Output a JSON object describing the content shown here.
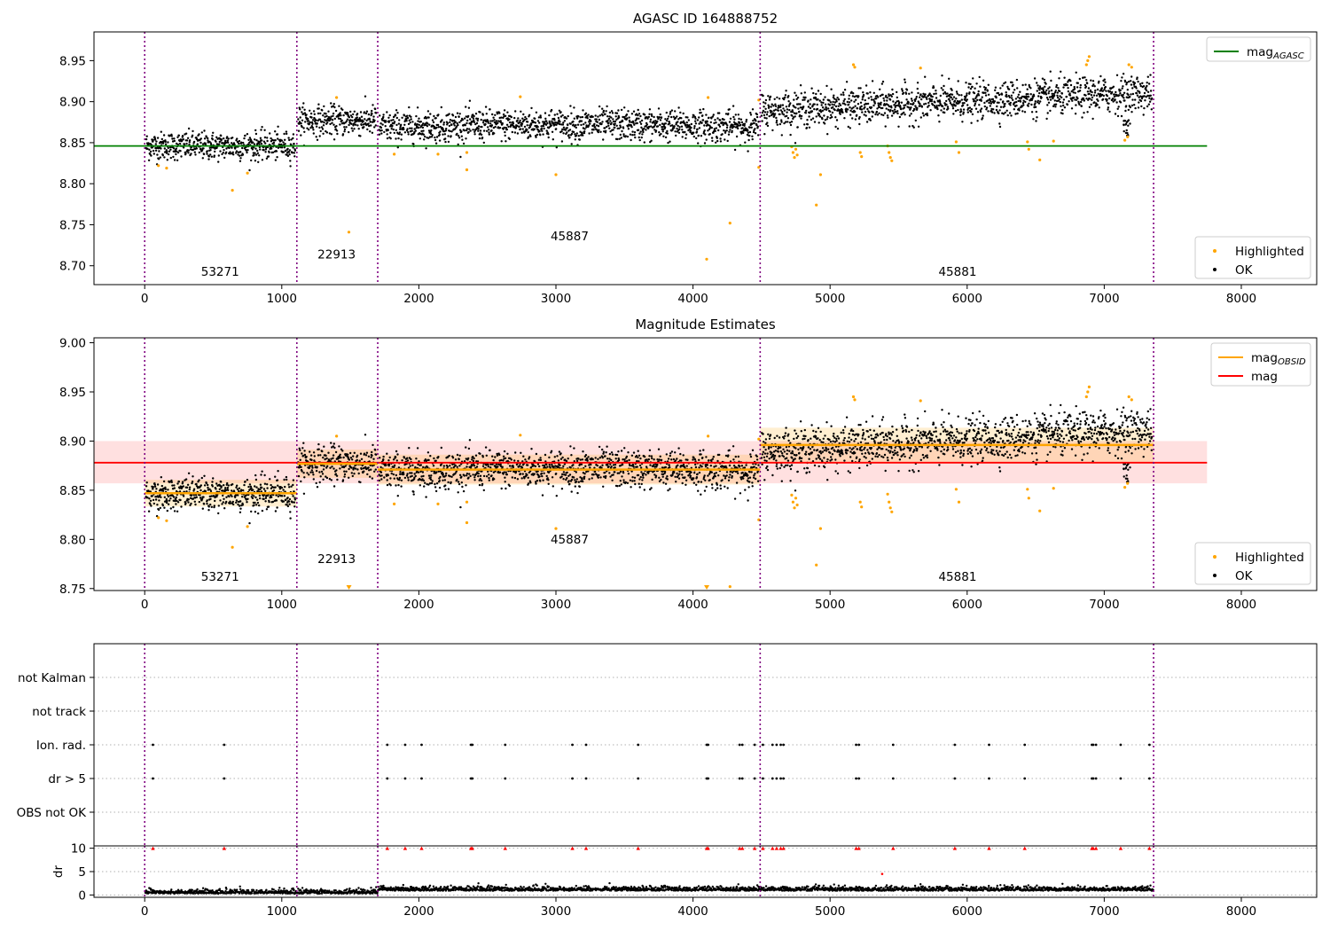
{
  "chart_data": [
    {
      "type": "scatter",
      "title": "AGASC ID 164888752",
      "xlim": [
        -370,
        8550
      ],
      "ylim": [
        8.677,
        8.985
      ],
      "x_ticks": [
        0,
        1000,
        2000,
        3000,
        4000,
        5000,
        6000,
        7000,
        8000
      ],
      "y_ticks": [
        8.7,
        8.75,
        8.8,
        8.85,
        8.9,
        8.95
      ],
      "y_tick_labels": [
        "8.70",
        "8.75",
        "8.80",
        "8.85",
        "8.90",
        "8.95"
      ],
      "obsid_boundaries": [
        0,
        1110,
        1700,
        4490,
        7360
      ],
      "obsid_labels": [
        {
          "text": "53271",
          "x": 550,
          "y": 8.688
        },
        {
          "text": "22913",
          "x": 1400,
          "y": 8.709
        },
        {
          "text": "45887",
          "x": 3100,
          "y": 8.731
        },
        {
          "text": "45881",
          "x": 5930,
          "y": 8.688
        }
      ],
      "mag_agasc": 8.846,
      "mag_agasc_extent": [
        -370,
        7750
      ],
      "legend_top": {
        "position": "upper-right",
        "entries": [
          {
            "label": "mag",
            "sub": "AGASC",
            "color": "#008000"
          }
        ]
      },
      "legend_bottom": {
        "position": "lower-right",
        "entries": [
          {
            "label": "Highlighted",
            "color": "#ffa500"
          },
          {
            "label": "OK",
            "color": "#000000"
          }
        ]
      },
      "segments": [
        {
          "x0": 0,
          "x1": 1110,
          "mean": 8.846,
          "sd": 0.0085
        },
        {
          "x0": 1110,
          "x1": 1700,
          "mean": 8.877,
          "sd": 0.009
        },
        {
          "x0": 1700,
          "x1": 4490,
          "mean": 8.869,
          "sd": 0.0095
        },
        {
          "x0": 4490,
          "x1": 7360,
          "mean": 8.897,
          "sd": 0.011
        }
      ],
      "highlighted_points": [
        [
          100,
          8.822
        ],
        [
          160,
          8.819
        ],
        [
          640,
          8.792
        ],
        [
          750,
          8.813
        ],
        [
          1400,
          8.905
        ],
        [
          1490,
          8.741
        ],
        [
          1820,
          8.836
        ],
        [
          2140,
          8.836
        ],
        [
          2350,
          8.817
        ],
        [
          2350,
          8.838
        ],
        [
          2740,
          8.906
        ],
        [
          3000,
          8.811
        ],
        [
          4100,
          8.708
        ],
        [
          4110,
          8.905
        ],
        [
          4270,
          8.752
        ],
        [
          4480,
          8.82
        ],
        [
          4480,
          8.902
        ],
        [
          4720,
          8.845
        ],
        [
          4730,
          8.838
        ],
        [
          4740,
          8.832
        ],
        [
          4750,
          8.842
        ],
        [
          4760,
          8.835
        ],
        [
          4900,
          8.774
        ],
        [
          4930,
          8.811
        ],
        [
          5170,
          8.945
        ],
        [
          5180,
          8.942
        ],
        [
          5220,
          8.838
        ],
        [
          5230,
          8.833
        ],
        [
          5420,
          8.846
        ],
        [
          5430,
          8.838
        ],
        [
          5440,
          8.832
        ],
        [
          5450,
          8.828
        ],
        [
          5660,
          8.941
        ],
        [
          5920,
          8.851
        ],
        [
          5940,
          8.838
        ],
        [
          6440,
          8.851
        ],
        [
          6450,
          8.842
        ],
        [
          6530,
          8.829
        ],
        [
          6630,
          8.852
        ],
        [
          6870,
          8.945
        ],
        [
          6880,
          8.95
        ],
        [
          6890,
          8.955
        ],
        [
          7150,
          8.853
        ],
        [
          7170,
          8.857
        ],
        [
          7180,
          8.945
        ],
        [
          7200,
          8.942
        ]
      ]
    },
    {
      "type": "scatter",
      "title": "Magnitude Estimates",
      "xlim": [
        -370,
        8550
      ],
      "ylim": [
        8.748,
        9.005
      ],
      "x_ticks": [
        0,
        1000,
        2000,
        3000,
        4000,
        5000,
        6000,
        7000,
        8000
      ],
      "y_ticks": [
        8.75,
        8.8,
        8.85,
        8.9,
        8.95,
        9.0
      ],
      "y_tick_labels": [
        "8.75",
        "8.80",
        "8.85",
        "8.90",
        "8.95",
        "9.00"
      ],
      "obsid_boundaries": [
        0,
        1110,
        1700,
        4490,
        7360
      ],
      "obsid_labels": [
        {
          "text": "53271",
          "x": 550,
          "y": 8.758
        },
        {
          "text": "22913",
          "x": 1400,
          "y": 8.776
        },
        {
          "text": "45887",
          "x": 3100,
          "y": 8.796
        },
        {
          "text": "45881",
          "x": 5930,
          "y": 8.758
        }
      ],
      "mag": 8.878,
      "mag_band": [
        8.857,
        8.9
      ],
      "mag_extent": [
        -370,
        7750
      ],
      "mag_obsid": [
        {
          "x0": 0,
          "x1": 1110,
          "value": 8.847
        },
        {
          "x0": 1110,
          "x1": 1700,
          "value": 8.877
        },
        {
          "x0": 1700,
          "x1": 4490,
          "value": 8.871
        },
        {
          "x0": 4490,
          "x1": 7360,
          "value": 8.896
        }
      ],
      "legend_top": {
        "position": "upper-right",
        "entries": [
          {
            "label": "mag",
            "sub": "OBSID",
            "color": "#ffa500"
          },
          {
            "label": "mag",
            "sub": "",
            "color": "#ff0000"
          }
        ]
      },
      "legend_bottom": {
        "position": "lower-right",
        "entries": [
          {
            "label": "Highlighted",
            "color": "#ffa500"
          },
          {
            "label": "OK",
            "color": "#000000"
          }
        ]
      },
      "clipped_points": [
        1490,
        4100
      ]
    },
    {
      "type": "scatter",
      "title": "",
      "xlim": [
        -370,
        8550
      ],
      "flag_rows": [
        "not Kalman",
        "not track",
        "Ion. rad.",
        "dr > 5",
        "OBS not OK"
      ],
      "flag_events_x": [
        60,
        580,
        1770,
        1900,
        2020,
        2380,
        2390,
        2630,
        3120,
        3220,
        3600,
        4100,
        4110,
        4340,
        4360,
        4450,
        4510,
        4580,
        4610,
        4640,
        4660,
        5190,
        5210,
        5460,
        5910,
        6160,
        6420,
        6910,
        6920,
        6940,
        7120,
        7330
      ]
    },
    {
      "type": "scatter",
      "title": "",
      "ylabel": "dr",
      "xlim": [
        -370,
        8550
      ],
      "ylim": [
        -0.5,
        10.5
      ],
      "x_ticks": [
        0,
        1000,
        2000,
        3000,
        4000,
        5000,
        6000,
        7000,
        8000
      ],
      "y_ticks": [
        0,
        5,
        10
      ],
      "y_tick_labels": [
        "0",
        "5",
        "10"
      ],
      "dr_clip_value": 10,
      "outlier": [
        5380,
        4.5
      ]
    }
  ]
}
